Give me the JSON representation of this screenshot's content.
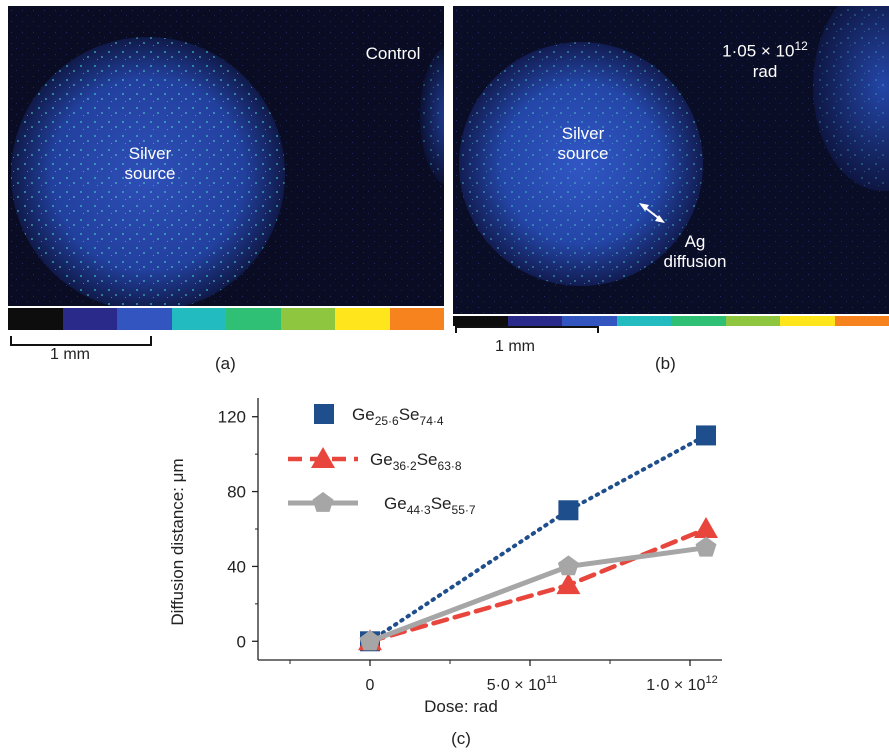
{
  "panel_a": {
    "caption": "(a)",
    "source_label_line1": "Silver",
    "source_label_line2": "source",
    "control_label": "Control",
    "scale_label": "1 mm"
  },
  "panel_b": {
    "caption": "(b)",
    "dose_label_prefix": "1·05 × 10",
    "dose_label_exp": "12",
    "dose_label_unit": "rad",
    "source_label_line1": "Silver",
    "source_label_line2": "source",
    "diffusion_label_line1": "Ag",
    "diffusion_label_line2": "diffusion",
    "scale_label": "1 mm"
  },
  "colorbar_colors": [
    "#0d0d0d",
    "#2a2a8a",
    "#3355c0",
    "#22bcc0",
    "#2fbf75",
    "#8ec63f",
    "#ffe51c",
    "#f7831f",
    "#ef3b2c"
  ],
  "panel_c": {
    "caption": "(c)"
  },
  "chart_data": {
    "type": "line",
    "xlabel": "Dose: rad",
    "ylabel": "Diffusion distance: μm",
    "xlim": [
      -350000000000,
      1100000000000
    ],
    "ylim": [
      -10,
      130
    ],
    "x_ticks": [
      {
        "value": 0,
        "label": "0"
      },
      {
        "value": 500000000000,
        "label": "5·0 × 10",
        "exp": "11"
      },
      {
        "value": 1000000000000,
        "label": "1·0 × 10",
        "exp": "12"
      }
    ],
    "y_ticks": [
      0,
      40,
      80,
      120
    ],
    "grid": false,
    "legend_position": "top-left",
    "series": [
      {
        "name": "Ge25·6Se74·4",
        "name_base1": "Ge",
        "name_sub1": "25·6",
        "name_base2": "Se",
        "name_sub2": "74·4",
        "color": "#1f4e8c",
        "line_style": "dotted",
        "marker": "square",
        "x": [
          0,
          620000000000,
          1050000000000
        ],
        "y": [
          0,
          70,
          110
        ]
      },
      {
        "name": "Ge36·2Se63·8",
        "name_base1": "Ge",
        "name_sub1": "36·2",
        "name_base2": "Se",
        "name_sub2": "63·8",
        "color": "#e8453c",
        "line_style": "dashed",
        "marker": "triangle",
        "x": [
          0,
          620000000000,
          1050000000000
        ],
        "y": [
          0,
          30,
          60
        ]
      },
      {
        "name": "Ge44·3Se55·7",
        "name_base1": "Ge",
        "name_sub1": "44·3",
        "name_base2": "Se",
        "name_sub2": "55·7",
        "color": "#a6a6a6",
        "line_style": "solid",
        "marker": "pentagon",
        "x": [
          0,
          620000000000,
          1050000000000
        ],
        "y": [
          0,
          40,
          50
        ]
      }
    ]
  }
}
